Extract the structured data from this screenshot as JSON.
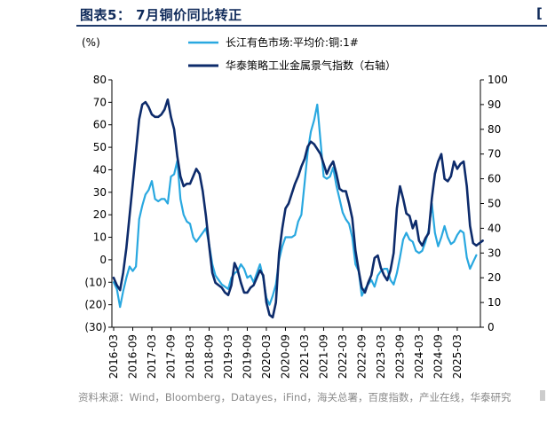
{
  "figure": {
    "title": "图表5： 7月铜价同比转正",
    "corner_mark": "[",
    "source": "资料来源：Wind，Bloomberg，Datayes，iFind，海关总署，百度指数，产业在线，华泰研究"
  },
  "chart_data": {
    "type": "line",
    "left_unit": "(%)",
    "ylim_left": [
      -30,
      80
    ],
    "ylim_right": [
      0,
      100
    ],
    "yticks_left": [
      "80",
      "70",
      "60",
      "50",
      "40",
      "30",
      "20",
      "10",
      "0",
      "(10)",
      "(20)",
      "(30)"
    ],
    "yticks_right": [
      "100",
      "90",
      "80",
      "70",
      "60",
      "50",
      "40",
      "30",
      "20",
      "10",
      "0"
    ],
    "xticks": [
      "2016-03",
      "2016-09",
      "2017-03",
      "2017-09",
      "2018-03",
      "2018-09",
      "2019-03",
      "2019-09",
      "2020-03",
      "2020-09",
      "2021-03",
      "2021-09",
      "2022-03",
      "2022-09",
      "2023-03",
      "2023-09",
      "2024-03",
      "2024-09",
      "2025-03"
    ],
    "legend_position": "top",
    "series": [
      {
        "name": "长江有色市场:平均价:铜:1#",
        "axis": "left",
        "color": "#29a8e0",
        "values": [
          -10,
          -13,
          -21,
          -14,
          -8,
          -3,
          -5,
          -3,
          18,
          24,
          29,
          31,
          35,
          27,
          26,
          27,
          27,
          25,
          37,
          38,
          44,
          27,
          20,
          17,
          16,
          10,
          8,
          10,
          12,
          14,
          7,
          -2,
          -7,
          -9,
          -11,
          -12,
          -13,
          -8,
          -6,
          -5,
          -2,
          -4,
          -8,
          -7,
          -10,
          -6,
          -2,
          -8,
          -17,
          -20,
          -16,
          -11,
          0,
          6,
          10,
          10,
          10,
          11,
          17,
          20,
          34,
          48,
          57,
          62,
          69,
          53,
          37,
          36,
          37,
          41,
          33,
          27,
          21,
          18,
          16,
          10,
          -2,
          -5,
          -16,
          -13,
          -11,
          -9,
          -12,
          -7,
          -5,
          -4,
          -4,
          -9,
          -11,
          -6,
          1,
          9,
          12,
          9,
          8,
          4,
          3,
          4,
          8,
          13,
          25,
          12,
          6,
          10,
          15,
          10,
          7,
          8,
          11,
          13,
          12,
          1,
          -4,
          -1,
          2
        ]
      },
      {
        "name": "华泰策略工业金属景气指数（右轴）",
        "axis": "right",
        "color": "#0d2b6b",
        "values": [
          20,
          17,
          15,
          22,
          32,
          45,
          58,
          71,
          84,
          90,
          91,
          89,
          86,
          85,
          85,
          86,
          88,
          92,
          85,
          80,
          69,
          61,
          57,
          58,
          58,
          61,
          64,
          62,
          55,
          45,
          33,
          22,
          18,
          17,
          16,
          14,
          13,
          17,
          26,
          23,
          18,
          14,
          14,
          16,
          17,
          20,
          23,
          21,
          10,
          5,
          4,
          10,
          30,
          40,
          48,
          50,
          54,
          58,
          61,
          65,
          68,
          73,
          75,
          74,
          72,
          70,
          66,
          62,
          65,
          67,
          62,
          56,
          55,
          55,
          50,
          44,
          31,
          23,
          16,
          14,
          18,
          21,
          28,
          29,
          24,
          21,
          19,
          23,
          30,
          48,
          57,
          52,
          46,
          45,
          40,
          43,
          35,
          33,
          36,
          38,
          52,
          62,
          67,
          70,
          60,
          59,
          61,
          67,
          64,
          66,
          67,
          57,
          41,
          34,
          33,
          34,
          35
        ]
      }
    ]
  }
}
